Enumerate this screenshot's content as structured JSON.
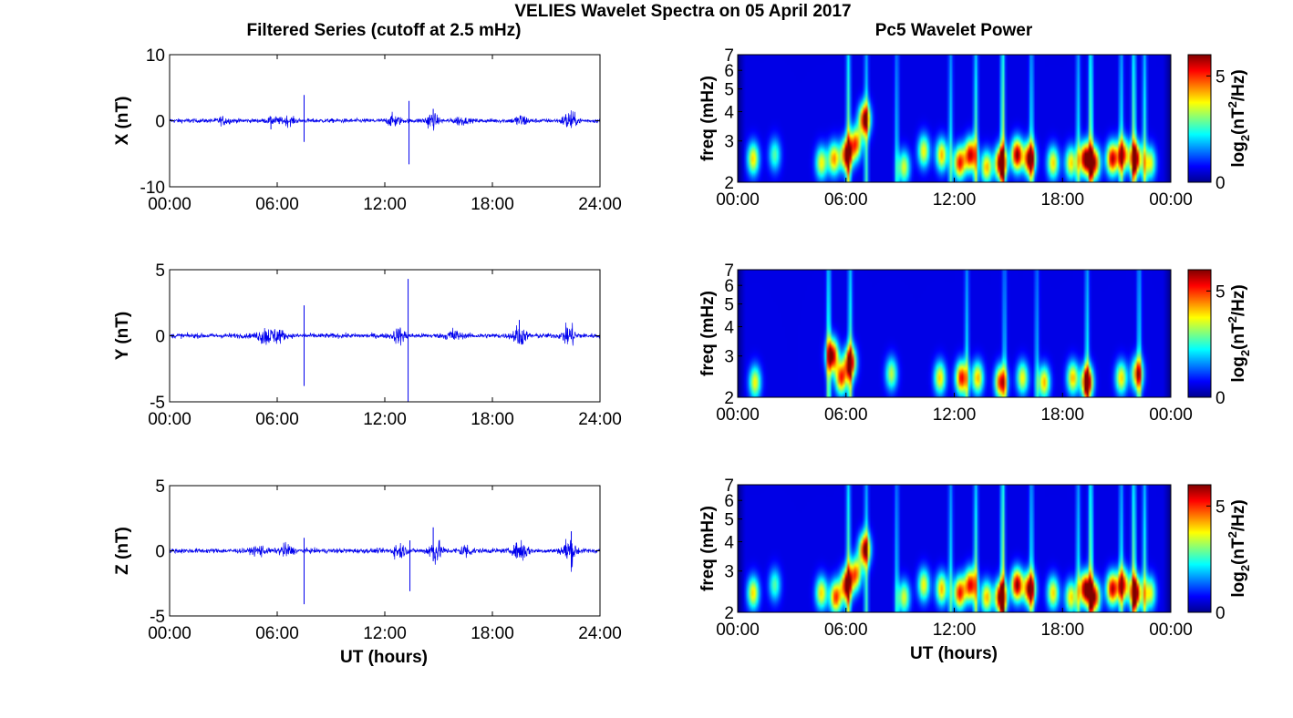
{
  "figure": {
    "title": "VELIES Wavelet Spectra on 05 April 2017",
    "left_title": "Filtered Series (cutoff at 2.5 mHz)",
    "right_title": "Pc5 Wavelet Power",
    "xlabel": "UT (hours)",
    "freq_label": "freq (mHz)",
    "colorbar_label": "log2(nT2/Hz)",
    "colorbar_label_parts": {
      "base": "log",
      "sub": "2",
      "open": "(nT",
      "sup": "2",
      "close": "/Hz)"
    }
  },
  "colors": {
    "trace": "#0000ee",
    "colormap": "jet",
    "axes": "#000000",
    "background": "#ffffff"
  },
  "chart_data": [
    {
      "type": "line",
      "component": "X",
      "ylabel": "X (nT)",
      "x_range_hours": [
        0,
        24
      ],
      "xticks": [
        "00:00",
        "06:00",
        "12:00",
        "18:00",
        "24:00"
      ],
      "ylim": [
        -10,
        10
      ],
      "yticks": [
        "10",
        "0",
        "-10"
      ],
      "baseline_noise_nT": 0.35,
      "wave_packets": [
        {
          "t": 3.0,
          "amp": 0.5
        },
        {
          "t": 5.8,
          "amp": 0.4
        },
        {
          "t": 6.6,
          "amp": 0.6
        },
        {
          "t": 12.5,
          "amp": 0.9
        },
        {
          "t": 14.6,
          "amp": 1.2
        },
        {
          "t": 16.2,
          "amp": 0.6
        },
        {
          "t": 19.6,
          "amp": 0.9
        },
        {
          "t": 22.3,
          "amp": 1.6
        }
      ],
      "spikes": [
        {
          "t": 7.5,
          "min": -3.2,
          "max": 3.9
        },
        {
          "t": 5.65,
          "min": -1.3,
          "max": 0.6
        },
        {
          "t": 13.35,
          "min": -6.6,
          "max": 3.0
        },
        {
          "t": 14.7,
          "min": -0.8,
          "max": 1.8
        }
      ],
      "grid": false
    },
    {
      "type": "line",
      "component": "Y",
      "ylabel": "Y (nT)",
      "x_range_hours": [
        0,
        24
      ],
      "xticks": [
        "00:00",
        "06:00",
        "12:00",
        "18:00",
        "24:00"
      ],
      "ylim": [
        -5,
        5
      ],
      "yticks": [
        "5",
        "0",
        "-5"
      ],
      "baseline_noise_nT": 0.2,
      "wave_packets": [
        {
          "t": 5.3,
          "amp": 0.7
        },
        {
          "t": 6.0,
          "amp": 0.6
        },
        {
          "t": 12.8,
          "amp": 0.6
        },
        {
          "t": 15.8,
          "amp": 0.5
        },
        {
          "t": 19.5,
          "amp": 0.8
        },
        {
          "t": 22.3,
          "amp": 0.9
        }
      ],
      "spikes": [
        {
          "t": 7.5,
          "min": -3.8,
          "max": 2.3
        },
        {
          "t": 13.3,
          "min": -5.0,
          "max": 4.3
        },
        {
          "t": 19.5,
          "min": -0.6,
          "max": 1.2
        }
      ],
      "grid": false
    },
    {
      "type": "line",
      "component": "Z",
      "ylabel": "Z (nT)",
      "x_range_hours": [
        0,
        24
      ],
      "xticks": [
        "00:00",
        "06:00",
        "12:00",
        "18:00",
        "24:00"
      ],
      "ylim": [
        -5,
        5
      ],
      "yticks": [
        "5",
        "0",
        "-5"
      ],
      "baseline_noise_nT": 0.2,
      "wave_packets": [
        {
          "t": 5.0,
          "amp": 0.4
        },
        {
          "t": 6.5,
          "amp": 0.5
        },
        {
          "t": 12.8,
          "amp": 0.6
        },
        {
          "t": 14.8,
          "amp": 1.0
        },
        {
          "t": 16.5,
          "amp": 0.5
        },
        {
          "t": 19.6,
          "amp": 0.9
        },
        {
          "t": 22.3,
          "amp": 1.2
        }
      ],
      "spikes": [
        {
          "t": 7.5,
          "min": -4.1,
          "max": 1.0
        },
        {
          "t": 13.4,
          "min": -3.1,
          "max": 0.8
        },
        {
          "t": 14.7,
          "min": -0.8,
          "max": 1.8
        },
        {
          "t": 22.4,
          "min": -1.3,
          "max": 1.5
        }
      ],
      "grid": false
    },
    {
      "type": "heatmap",
      "component": "X",
      "ylabel": "freq (mHz)",
      "x_range_hours": [
        0,
        24
      ],
      "xticks": [
        "00:00",
        "06:00",
        "12:00",
        "18:00",
        "00:00"
      ],
      "ylim_mHz": [
        2,
        7
      ],
      "yscale": "log",
      "yticks": [
        "2",
        "3",
        "4",
        "5",
        "6",
        "7"
      ],
      "colorbar_range": [
        0,
        6
      ],
      "colorbar_ticks": [
        "5",
        "0"
      ],
      "blobs": [
        {
          "t": 0.8,
          "f": 2.5,
          "p": 3.4
        },
        {
          "t": 2.0,
          "f": 2.6,
          "p": 2.2
        },
        {
          "t": 4.6,
          "f": 2.4,
          "p": 3.2
        },
        {
          "t": 5.3,
          "f": 2.5,
          "p": 3.8
        },
        {
          "t": 6.0,
          "f": 2.6,
          "p": 5.0
        },
        {
          "t": 6.5,
          "f": 2.9,
          "p": 4.2
        },
        {
          "t": 7.0,
          "f": 3.7,
          "p": 5.0
        },
        {
          "t": 9.2,
          "f": 2.3,
          "p": 3.0
        },
        {
          "t": 10.3,
          "f": 2.7,
          "p": 3.2
        },
        {
          "t": 11.3,
          "f": 2.6,
          "p": 3.6
        },
        {
          "t": 12.3,
          "f": 2.4,
          "p": 4.6
        },
        {
          "t": 12.9,
          "f": 2.6,
          "p": 5.0
        },
        {
          "t": 13.8,
          "f": 2.3,
          "p": 3.6
        },
        {
          "t": 14.6,
          "f": 2.4,
          "p": 6.0
        },
        {
          "t": 15.5,
          "f": 2.6,
          "p": 5.4
        },
        {
          "t": 16.2,
          "f": 2.5,
          "p": 5.6
        },
        {
          "t": 17.5,
          "f": 2.4,
          "p": 3.4
        },
        {
          "t": 18.5,
          "f": 2.4,
          "p": 3.4
        },
        {
          "t": 19.3,
          "f": 2.5,
          "p": 5.6
        },
        {
          "t": 19.8,
          "f": 2.4,
          "p": 4.8
        },
        {
          "t": 20.8,
          "f": 2.5,
          "p": 5.0
        },
        {
          "t": 21.4,
          "f": 2.6,
          "p": 4.4
        },
        {
          "t": 22.1,
          "f": 2.5,
          "p": 5.6
        },
        {
          "t": 22.9,
          "f": 2.4,
          "p": 3.2
        }
      ],
      "streaks": [
        {
          "t": 6.1,
          "p": 5.2
        },
        {
          "t": 7.1,
          "p": 3.8
        },
        {
          "t": 8.8,
          "p": 3.0
        },
        {
          "t": 11.8,
          "p": 3.4
        },
        {
          "t": 13.2,
          "p": 4.6
        },
        {
          "t": 14.7,
          "p": 6.0
        },
        {
          "t": 16.3,
          "p": 3.8
        },
        {
          "t": 18.9,
          "p": 3.6
        },
        {
          "t": 19.6,
          "p": 5.8
        },
        {
          "t": 21.3,
          "p": 3.8
        },
        {
          "t": 22.0,
          "p": 5.4
        },
        {
          "t": 22.6,
          "p": 4.2
        }
      ]
    },
    {
      "type": "heatmap",
      "component": "Y",
      "ylabel": "freq (mHz)",
      "x_range_hours": [
        0,
        24
      ],
      "xticks": [
        "00:00",
        "06:00",
        "12:00",
        "18:00",
        "00:00"
      ],
      "ylim_mHz": [
        2,
        7
      ],
      "yscale": "log",
      "yticks": [
        "2",
        "3",
        "4",
        "5",
        "6",
        "7"
      ],
      "colorbar_range": [
        0,
        6
      ],
      "colorbar_ticks": [
        "5",
        "0"
      ],
      "blobs": [
        {
          "t": 0.9,
          "f": 2.3,
          "p": 3.2
        },
        {
          "t": 5.2,
          "f": 3.0,
          "p": 5.4
        },
        {
          "t": 5.7,
          "f": 2.4,
          "p": 4.4
        },
        {
          "t": 6.2,
          "f": 2.8,
          "p": 5.2
        },
        {
          "t": 8.5,
          "f": 2.5,
          "p": 2.8
        },
        {
          "t": 11.2,
          "f": 2.4,
          "p": 3.4
        },
        {
          "t": 12.4,
          "f": 2.4,
          "p": 4.8
        },
        {
          "t": 13.3,
          "f": 2.4,
          "p": 3.6
        },
        {
          "t": 14.6,
          "f": 2.3,
          "p": 4.8
        },
        {
          "t": 15.8,
          "f": 2.4,
          "p": 3.2
        },
        {
          "t": 17.0,
          "f": 2.3,
          "p": 3.6
        },
        {
          "t": 18.6,
          "f": 2.4,
          "p": 3.6
        },
        {
          "t": 19.4,
          "f": 2.3,
          "p": 5.8
        },
        {
          "t": 21.3,
          "f": 2.4,
          "p": 3.4
        },
        {
          "t": 22.2,
          "f": 2.5,
          "p": 4.2
        }
      ],
      "streaks": [
        {
          "t": 5.0,
          "p": 4.8
        },
        {
          "t": 6.2,
          "p": 4.6
        },
        {
          "t": 12.7,
          "p": 3.4
        },
        {
          "t": 14.8,
          "p": 3.0
        },
        {
          "t": 19.4,
          "p": 3.8
        },
        {
          "t": 22.3,
          "p": 3.6
        },
        {
          "t": 16.6,
          "p": 2.8
        }
      ]
    },
    {
      "type": "heatmap",
      "component": "Z",
      "ylabel": "freq (mHz)",
      "x_range_hours": [
        0,
        24
      ],
      "xticks": [
        "00:00",
        "06:00",
        "12:00",
        "18:00",
        "00:00"
      ],
      "ylim_mHz": [
        2,
        7
      ],
      "yscale": "log",
      "yticks": [
        "2",
        "3",
        "4",
        "5",
        "6",
        "7"
      ],
      "colorbar_range": [
        0,
        6
      ],
      "colorbar_ticks": [
        "5",
        "0"
      ],
      "blobs": [
        {
          "t": 0.8,
          "f": 2.4,
          "p": 3.4
        },
        {
          "t": 2.0,
          "f": 2.6,
          "p": 2.2
        },
        {
          "t": 4.6,
          "f": 2.4,
          "p": 3.4
        },
        {
          "t": 5.4,
          "f": 2.3,
          "p": 4.4
        },
        {
          "t": 6.0,
          "f": 2.6,
          "p": 5.0
        },
        {
          "t": 6.5,
          "f": 2.9,
          "p": 4.0
        },
        {
          "t": 7.0,
          "f": 3.7,
          "p": 4.8
        },
        {
          "t": 9.2,
          "f": 2.3,
          "p": 3.0
        },
        {
          "t": 10.3,
          "f": 2.6,
          "p": 3.2
        },
        {
          "t": 11.3,
          "f": 2.5,
          "p": 3.6
        },
        {
          "t": 12.3,
          "f": 2.4,
          "p": 4.6
        },
        {
          "t": 12.9,
          "f": 2.6,
          "p": 4.8
        },
        {
          "t": 13.8,
          "f": 2.3,
          "p": 3.6
        },
        {
          "t": 14.6,
          "f": 2.3,
          "p": 6.0
        },
        {
          "t": 15.5,
          "f": 2.6,
          "p": 5.4
        },
        {
          "t": 16.2,
          "f": 2.5,
          "p": 5.4
        },
        {
          "t": 17.5,
          "f": 2.4,
          "p": 3.4
        },
        {
          "t": 18.5,
          "f": 2.3,
          "p": 3.4
        },
        {
          "t": 19.3,
          "f": 2.5,
          "p": 5.6
        },
        {
          "t": 19.8,
          "f": 2.3,
          "p": 5.0
        },
        {
          "t": 20.8,
          "f": 2.5,
          "p": 5.0
        },
        {
          "t": 21.4,
          "f": 2.6,
          "p": 4.4
        },
        {
          "t": 22.1,
          "f": 2.4,
          "p": 5.8
        },
        {
          "t": 22.9,
          "f": 2.4,
          "p": 3.2
        }
      ],
      "streaks": [
        {
          "t": 6.1,
          "p": 5.0
        },
        {
          "t": 7.1,
          "p": 3.8
        },
        {
          "t": 8.8,
          "p": 3.0
        },
        {
          "t": 11.8,
          "p": 3.4
        },
        {
          "t": 13.2,
          "p": 4.6
        },
        {
          "t": 14.7,
          "p": 6.0
        },
        {
          "t": 16.3,
          "p": 3.8
        },
        {
          "t": 18.9,
          "p": 3.6
        },
        {
          "t": 19.6,
          "p": 5.8
        },
        {
          "t": 21.3,
          "p": 3.8
        },
        {
          "t": 22.0,
          "p": 5.4
        },
        {
          "t": 22.6,
          "p": 4.2
        }
      ]
    }
  ]
}
